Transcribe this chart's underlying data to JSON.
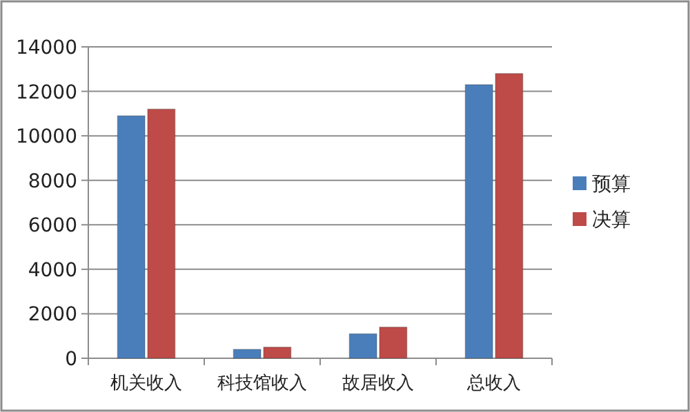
{
  "chart_data": {
    "type": "bar",
    "categories": [
      "机关收入",
      "科技馆收入",
      "故居收入",
      "总收入"
    ],
    "series": [
      {
        "name": "预算",
        "color": "#4a7ebb",
        "values": [
          10900,
          400,
          1100,
          12300
        ]
      },
      {
        "name": "决算",
        "color": "#be4b48",
        "values": [
          11200,
          500,
          1400,
          12800
        ]
      }
    ],
    "ylim": [
      0,
      14000
    ],
    "yticks": [
      0,
      2000,
      4000,
      6000,
      8000,
      10000,
      12000,
      14000
    ],
    "grid": "y",
    "legend": "right"
  }
}
